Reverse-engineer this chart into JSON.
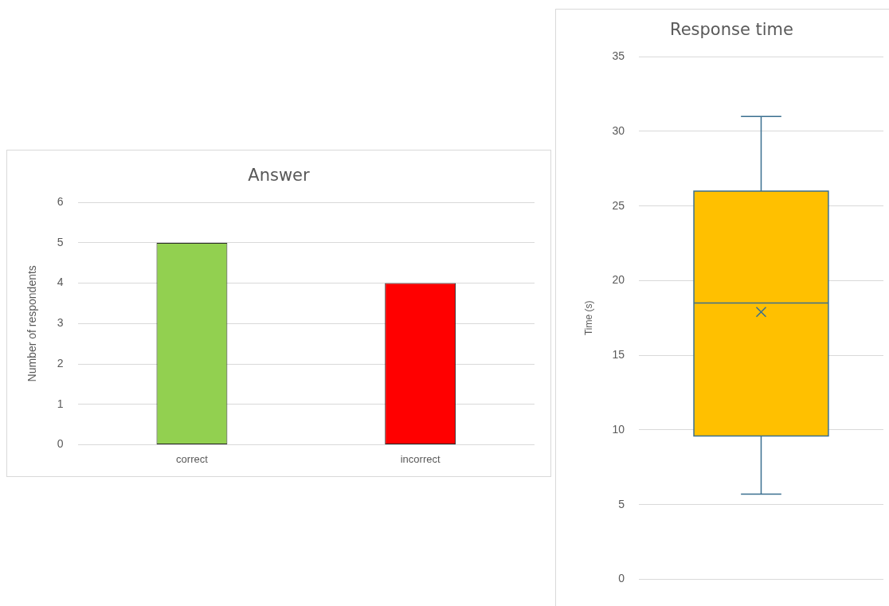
{
  "chart_data": [
    {
      "type": "bar",
      "title": "Answer",
      "categories": [
        "correct",
        "incorrect"
      ],
      "values": [
        5,
        4
      ],
      "colors": [
        "#92d050",
        "#ff0000"
      ],
      "ylabel": "Number of respondents",
      "ylim": [
        0,
        6
      ],
      "yticks": [
        0,
        1,
        2,
        3,
        4,
        5,
        6
      ],
      "grid": "y"
    },
    {
      "type": "box",
      "title": "Response time",
      "categories": [
        null
      ],
      "boxes": [
        {
          "low": 5.7,
          "q1": 9.6,
          "median": 18.5,
          "q3": 26,
          "high": 31,
          "mean": 17.9
        }
      ],
      "color": "#ffc000",
      "ylabel": "Time (s)",
      "ylim": [
        0,
        35
      ],
      "yticks": [
        0,
        5,
        10,
        15,
        20,
        25,
        30,
        35
      ],
      "grid": "y"
    }
  ]
}
